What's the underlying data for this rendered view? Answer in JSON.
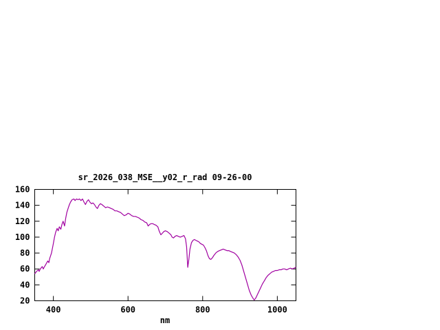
{
  "page": {
    "background": "#ffffff",
    "foreground": "#000000"
  },
  "chart_data": {
    "type": "line",
    "title": "sr_2026_038_MSE__y02_r_rad 09-26-00",
    "xlabel": "nm",
    "ylabel": "",
    "xlim": [
      350,
      1050
    ],
    "ylim": [
      20,
      160
    ],
    "x_ticks": [
      400,
      600,
      800,
      1000
    ],
    "y_ticks": [
      20,
      40,
      60,
      80,
      100,
      120,
      140,
      160
    ],
    "grid": false,
    "legend": "none",
    "line_color": "#a000a0",
    "series": [
      {
        "name": "sr_2026_038_MSE__y02_r_rad",
        "points": [
          [
            350,
            54
          ],
          [
            355,
            57
          ],
          [
            360,
            59
          ],
          [
            362,
            57
          ],
          [
            365,
            60
          ],
          [
            370,
            63
          ],
          [
            373,
            60
          ],
          [
            375,
            62
          ],
          [
            380,
            66
          ],
          [
            385,
            70
          ],
          [
            388,
            68
          ],
          [
            390,
            73
          ],
          [
            395,
            80
          ],
          [
            400,
            92
          ],
          [
            403,
            100
          ],
          [
            406,
            106
          ],
          [
            410,
            111
          ],
          [
            413,
            108
          ],
          [
            416,
            113
          ],
          [
            420,
            110
          ],
          [
            423,
            116
          ],
          [
            426,
            120
          ],
          [
            430,
            114
          ],
          [
            433,
            124
          ],
          [
            436,
            131
          ],
          [
            440,
            137
          ],
          [
            443,
            141
          ],
          [
            446,
            144
          ],
          [
            450,
            147
          ],
          [
            455,
            148
          ],
          [
            458,
            146
          ],
          [
            462,
            148
          ],
          [
            466,
            147
          ],
          [
            470,
            148
          ],
          [
            474,
            146
          ],
          [
            478,
            148
          ],
          [
            482,
            144
          ],
          [
            486,
            141
          ],
          [
            490,
            145
          ],
          [
            494,
            147
          ],
          [
            498,
            144
          ],
          [
            502,
            142
          ],
          [
            506,
            143
          ],
          [
            510,
            141
          ],
          [
            514,
            138
          ],
          [
            518,
            136
          ],
          [
            522,
            140
          ],
          [
            526,
            142
          ],
          [
            530,
            141
          ],
          [
            535,
            139
          ],
          [
            540,
            137
          ],
          [
            545,
            138
          ],
          [
            550,
            137
          ],
          [
            555,
            136
          ],
          [
            560,
            135
          ],
          [
            565,
            133
          ],
          [
            570,
            133
          ],
          [
            575,
            132
          ],
          [
            580,
            131
          ],
          [
            585,
            129
          ],
          [
            590,
            127
          ],
          [
            595,
            128
          ],
          [
            600,
            130
          ],
          [
            605,
            129
          ],
          [
            610,
            127
          ],
          [
            615,
            126
          ],
          [
            620,
            126
          ],
          [
            625,
            125
          ],
          [
            630,
            124
          ],
          [
            635,
            122
          ],
          [
            640,
            121
          ],
          [
            645,
            119
          ],
          [
            650,
            118
          ],
          [
            654,
            114
          ],
          [
            658,
            116
          ],
          [
            662,
            117
          ],
          [
            666,
            117
          ],
          [
            670,
            116
          ],
          [
            675,
            115
          ],
          [
            680,
            113
          ],
          [
            684,
            107
          ],
          [
            688,
            103
          ],
          [
            692,
            105
          ],
          [
            696,
            107
          ],
          [
            700,
            108
          ],
          [
            705,
            107
          ],
          [
            710,
            105
          ],
          [
            715,
            103
          ],
          [
            718,
            100
          ],
          [
            722,
            99
          ],
          [
            726,
            101
          ],
          [
            730,
            102
          ],
          [
            735,
            101
          ],
          [
            740,
            100
          ],
          [
            745,
            101
          ],
          [
            750,
            102
          ],
          [
            754,
            98
          ],
          [
            757,
            88
          ],
          [
            760,
            62
          ],
          [
            763,
            72
          ],
          [
            766,
            85
          ],
          [
            770,
            93
          ],
          [
            774,
            96
          ],
          [
            778,
            97
          ],
          [
            782,
            96
          ],
          [
            786,
            95
          ],
          [
            790,
            94
          ],
          [
            794,
            92
          ],
          [
            798,
            91
          ],
          [
            802,
            90
          ],
          [
            806,
            87
          ],
          [
            810,
            83
          ],
          [
            814,
            77
          ],
          [
            818,
            73
          ],
          [
            822,
            72
          ],
          [
            826,
            74
          ],
          [
            830,
            77
          ],
          [
            835,
            80
          ],
          [
            840,
            82
          ],
          [
            845,
            83
          ],
          [
            850,
            84
          ],
          [
            855,
            85
          ],
          [
            860,
            84
          ],
          [
            865,
            83
          ],
          [
            870,
            83
          ],
          [
            875,
            82
          ],
          [
            880,
            81
          ],
          [
            885,
            80
          ],
          [
            890,
            78
          ],
          [
            895,
            75
          ],
          [
            900,
            71
          ],
          [
            905,
            65
          ],
          [
            910,
            57
          ],
          [
            915,
            49
          ],
          [
            920,
            41
          ],
          [
            925,
            33
          ],
          [
            930,
            27
          ],
          [
            935,
            23
          ],
          [
            938,
            21
          ],
          [
            940,
            22
          ],
          [
            943,
            24
          ],
          [
            946,
            27
          ],
          [
            950,
            31
          ],
          [
            955,
            36
          ],
          [
            960,
            41
          ],
          [
            965,
            45
          ],
          [
            970,
            49
          ],
          [
            975,
            52
          ],
          [
            980,
            54
          ],
          [
            985,
            56
          ],
          [
            990,
            57
          ],
          [
            995,
            58
          ],
          [
            1000,
            58
          ],
          [
            1005,
            59
          ],
          [
            1010,
            59
          ],
          [
            1015,
            60
          ],
          [
            1020,
            60
          ],
          [
            1025,
            59
          ],
          [
            1030,
            60
          ],
          [
            1035,
            61
          ],
          [
            1040,
            60
          ],
          [
            1045,
            61
          ],
          [
            1050,
            62
          ]
        ]
      }
    ]
  }
}
